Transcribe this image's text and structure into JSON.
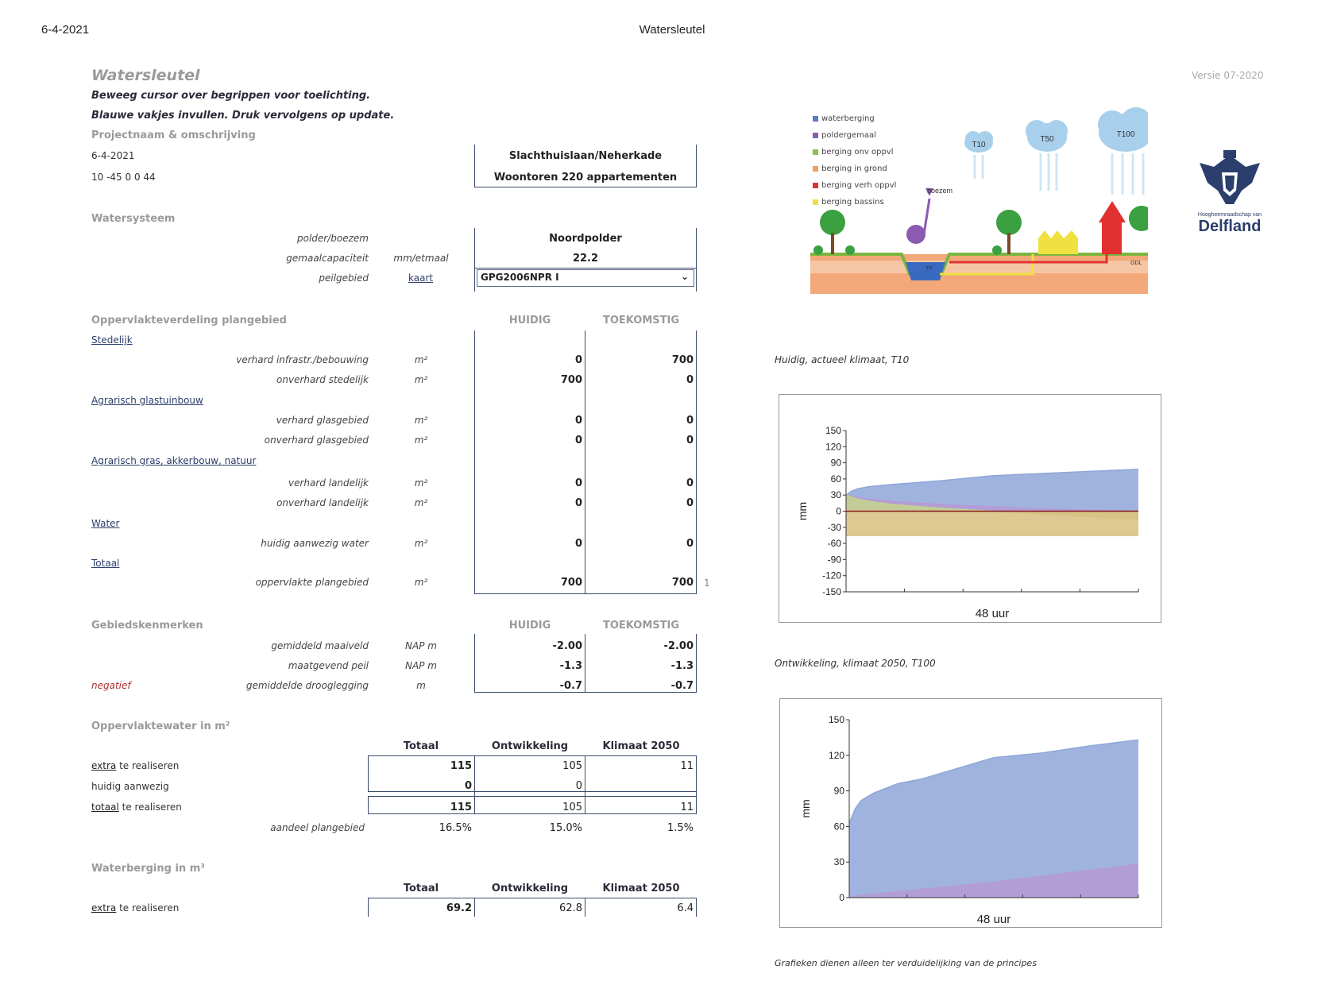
{
  "page_header": {
    "date": "6-4-2021",
    "title": "Watersleutel"
  },
  "app": {
    "title": "Watersleutel",
    "version": "Versie 07-2020",
    "instruction1": "Beweeg cursor over begrippen voor toelichting.",
    "instruction2": "Blauwe vakjes invullen. Druk vervolgens op update."
  },
  "project": {
    "section": "Projectnaam & omschrijving",
    "date": "6-4-2021",
    "code": "10 -45 0 0 44",
    "name": "Slachthuislaan/Neherkade",
    "description": "Woontoren 220 appartementen"
  },
  "watersysteem": {
    "section": "Watersysteem",
    "rows": [
      {
        "label": "polder/boezem",
        "unit": "",
        "value": "Noordpolder"
      },
      {
        "label": "gemaalcapaciteit",
        "unit": "mm/etmaal",
        "value": "22.2"
      },
      {
        "label": "peilgebied",
        "link": "kaart",
        "value": "GPG2006NPR I"
      }
    ]
  },
  "oppervlakte": {
    "section": "Oppervlakteverdeling plangebied",
    "col_huidig": "HUIDIG",
    "col_toekomstig": "TOEKOMSTIG",
    "groups": [
      {
        "name": "Stedelijk",
        "rows": [
          {
            "label": "verhard infrastr./bebouwing",
            "unit": "m²",
            "huidig": "0",
            "toekomstig": "700"
          },
          {
            "label": "onverhard stedelijk",
            "unit": "m²",
            "huidig": "700",
            "toekomstig": "0"
          }
        ]
      },
      {
        "name": "Agrarisch glastuinbouw",
        "rows": [
          {
            "label": "verhard glasgebied",
            "unit": "m²",
            "huidig": "0",
            "toekomstig": "0"
          },
          {
            "label": "onverhard glasgebied",
            "unit": "m²",
            "huidig": "0",
            "toekomstig": "0"
          }
        ]
      },
      {
        "name": "Agrarisch gras, akkerbouw, natuur",
        "rows": [
          {
            "label": "verhard landelijk",
            "unit": "m²",
            "huidig": "0",
            "toekomstig": "0"
          },
          {
            "label": "onverhard landelijk",
            "unit": "m²",
            "huidig": "0",
            "toekomstig": "0"
          }
        ]
      },
      {
        "name": "Water",
        "rows": [
          {
            "label": "huidig aanwezig water",
            "unit": "m²",
            "huidig": "0",
            "toekomstig": "0"
          }
        ]
      },
      {
        "name": "Totaal",
        "rows": [
          {
            "label": "oppervlakte plangebied",
            "unit": "m²",
            "huidig": "700",
            "toekomstig": "700",
            "extra": "1"
          }
        ]
      }
    ]
  },
  "gebied": {
    "section": "Gebiedskenmerken",
    "col_huidig": "HUIDIG",
    "col_toekomstig": "TOEKOMSTIG",
    "flag": "negatief",
    "rows": [
      {
        "label": "gemiddeld maaiveld",
        "unit": "NAP m",
        "huidig": "-2.00",
        "toekomstig": "-2.00"
      },
      {
        "label": "maatgevend peil",
        "unit": "NAP m",
        "huidig": "-1.3",
        "toekomstig": "-1.3"
      },
      {
        "label": "gemiddelde drooglegging",
        "unit": "m",
        "huidig": "-0.7",
        "toekomstig": "-0.7"
      }
    ]
  },
  "opp_water": {
    "section": "Oppervlaktewater in m²",
    "cols": [
      "Totaal",
      "Ontwikkeling",
      "Klimaat 2050"
    ],
    "rows": [
      {
        "link": "extra",
        "text": " te realiseren",
        "values": [
          "115",
          "105",
          "11"
        ]
      },
      {
        "text": "huidig aanwezig",
        "values": [
          "0",
          "0",
          ""
        ]
      },
      {
        "link": "totaal",
        "text": " te realiseren",
        "values": [
          "115",
          "105",
          "11"
        ]
      }
    ],
    "aandeel_label": "aandeel plangebied",
    "aandeel": [
      "16.5%",
      "15.0%",
      "1.5%"
    ]
  },
  "waterberging": {
    "section": "Waterberging in m³",
    "cols": [
      "Totaal",
      "Ontwikkeling",
      "Klimaat 2050"
    ],
    "rows": [
      {
        "link": "extra",
        "text": " te realiseren",
        "values": [
          "69.2",
          "62.8",
          "6.4"
        ]
      }
    ]
  },
  "illustration": {
    "legend": [
      "waterberging",
      "poldergemaal",
      "berging onv oppvl",
      "berging in grond",
      "berging verh oppvl",
      "berging bassins"
    ],
    "legend_colors": [
      "#5b7bc0",
      "#8a5bb0",
      "#8cbf4e",
      "#f0a060",
      "#e03030",
      "#f0e040"
    ],
    "clouds": [
      "T10",
      "T50",
      "T100"
    ],
    "labels": {
      "boezem": "boezem",
      "tp": "TP",
      "gdl": "GDL"
    }
  },
  "logo": {
    "line1": "Hoogheemraadschap van",
    "line2": "Delfland"
  },
  "chart_data": [
    {
      "type": "area",
      "caption": "Huidig, actueel klimaat, T10",
      "xlabel": "48 uur",
      "ylabel": "mm",
      "ylim": [
        -150,
        150
      ],
      "yticks": [
        150,
        120,
        90,
        60,
        30,
        0,
        -30,
        -60,
        -90,
        -120,
        -150
      ],
      "x": [
        0,
        1,
        2,
        4,
        8,
        16,
        24,
        32,
        40,
        48
      ],
      "series": [
        {
          "color": "#8fa6d8",
          "values": [
            30,
            38,
            42,
            46,
            50,
            57,
            66,
            70,
            74,
            78
          ]
        },
        {
          "color": "#b59ad6",
          "values": [
            30,
            28,
            25,
            22,
            18,
            12,
            8,
            4,
            2,
            0
          ]
        },
        {
          "color": "#c5d28c",
          "values": [
            30,
            26,
            22,
            18,
            12,
            5,
            0,
            -5,
            -10,
            -15
          ]
        },
        {
          "color": "#d8c080",
          "values": [
            -45,
            -45,
            -45,
            -45,
            -45,
            -45,
            -45,
            -45,
            -45,
            -45
          ]
        }
      ]
    },
    {
      "type": "area",
      "caption": "Ontwikkeling, klimaat 2050, T100",
      "xlabel": "48 uur",
      "ylabel": "mm",
      "ylim": [
        0,
        150
      ],
      "yticks": [
        150,
        120,
        90,
        60,
        30,
        0
      ],
      "x": [
        0,
        1,
        2,
        4,
        8,
        12,
        16,
        24,
        32,
        40,
        48
      ],
      "series": [
        {
          "color": "#8fa6d8",
          "values": [
            63,
            75,
            82,
            88,
            96,
            100,
            106,
            118,
            122,
            128,
            133
          ]
        },
        {
          "color": "#b59ad6",
          "values": [
            0,
            1,
            2,
            3,
            5,
            7,
            9,
            13,
            18,
            23,
            28
          ]
        }
      ]
    }
  ],
  "footnote": "Grafieken dienen alleen ter verduidelijking van de principes"
}
